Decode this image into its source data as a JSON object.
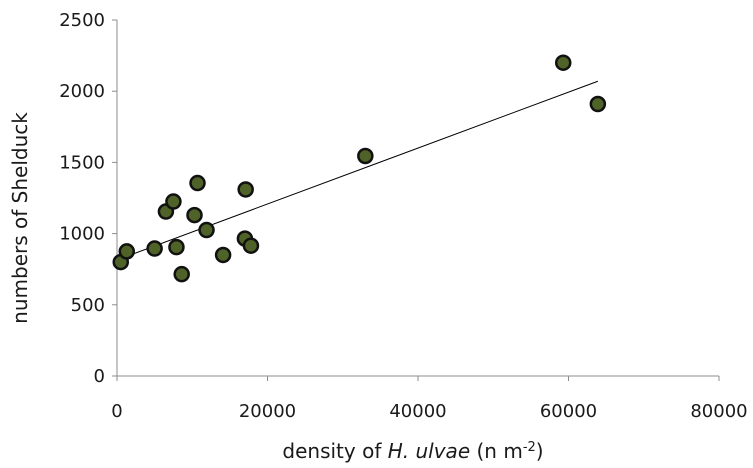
{
  "chart_data": {
    "type": "scatter",
    "title": "",
    "xlabel": {
      "prefix": "density of ",
      "italic": "H. ulvae",
      "suffix": " (n m",
      "superscript": "-2",
      "close": ")"
    },
    "ylabel": "numbers of Shelduck",
    "xlim": [
      0,
      80000
    ],
    "ylim": [
      0,
      2500
    ],
    "x_ticks": [
      "0",
      "20000",
      "40000",
      "60000",
      "80000"
    ],
    "y_ticks": [
      "0",
      "500",
      "1000",
      "1500",
      "2000",
      "2500"
    ],
    "x_tick_values": [
      0,
      20000,
      40000,
      60000,
      80000
    ],
    "y_tick_values": [
      0,
      500,
      1000,
      1500,
      2000,
      2500
    ],
    "grid": false,
    "legend": "none",
    "point_color": "#4f6228",
    "points": [
      {
        "x": 500,
        "y": 800
      },
      {
        "x": 1300,
        "y": 875
      },
      {
        "x": 5000,
        "y": 895
      },
      {
        "x": 6500,
        "y": 1155
      },
      {
        "x": 7500,
        "y": 1225
      },
      {
        "x": 7900,
        "y": 905
      },
      {
        "x": 8600,
        "y": 715
      },
      {
        "x": 10300,
        "y": 1130
      },
      {
        "x": 10700,
        "y": 1355
      },
      {
        "x": 11900,
        "y": 1025
      },
      {
        "x": 14100,
        "y": 850
      },
      {
        "x": 17000,
        "y": 965
      },
      {
        "x": 17100,
        "y": 1310
      },
      {
        "x": 17800,
        "y": 915
      },
      {
        "x": 33000,
        "y": 1545
      },
      {
        "x": 59300,
        "y": 2200
      },
      {
        "x": 63900,
        "y": 1910
      }
    ],
    "trendline": {
      "x": [
        0,
        63900
      ],
      "y": [
        815,
        2070
      ]
    }
  }
}
